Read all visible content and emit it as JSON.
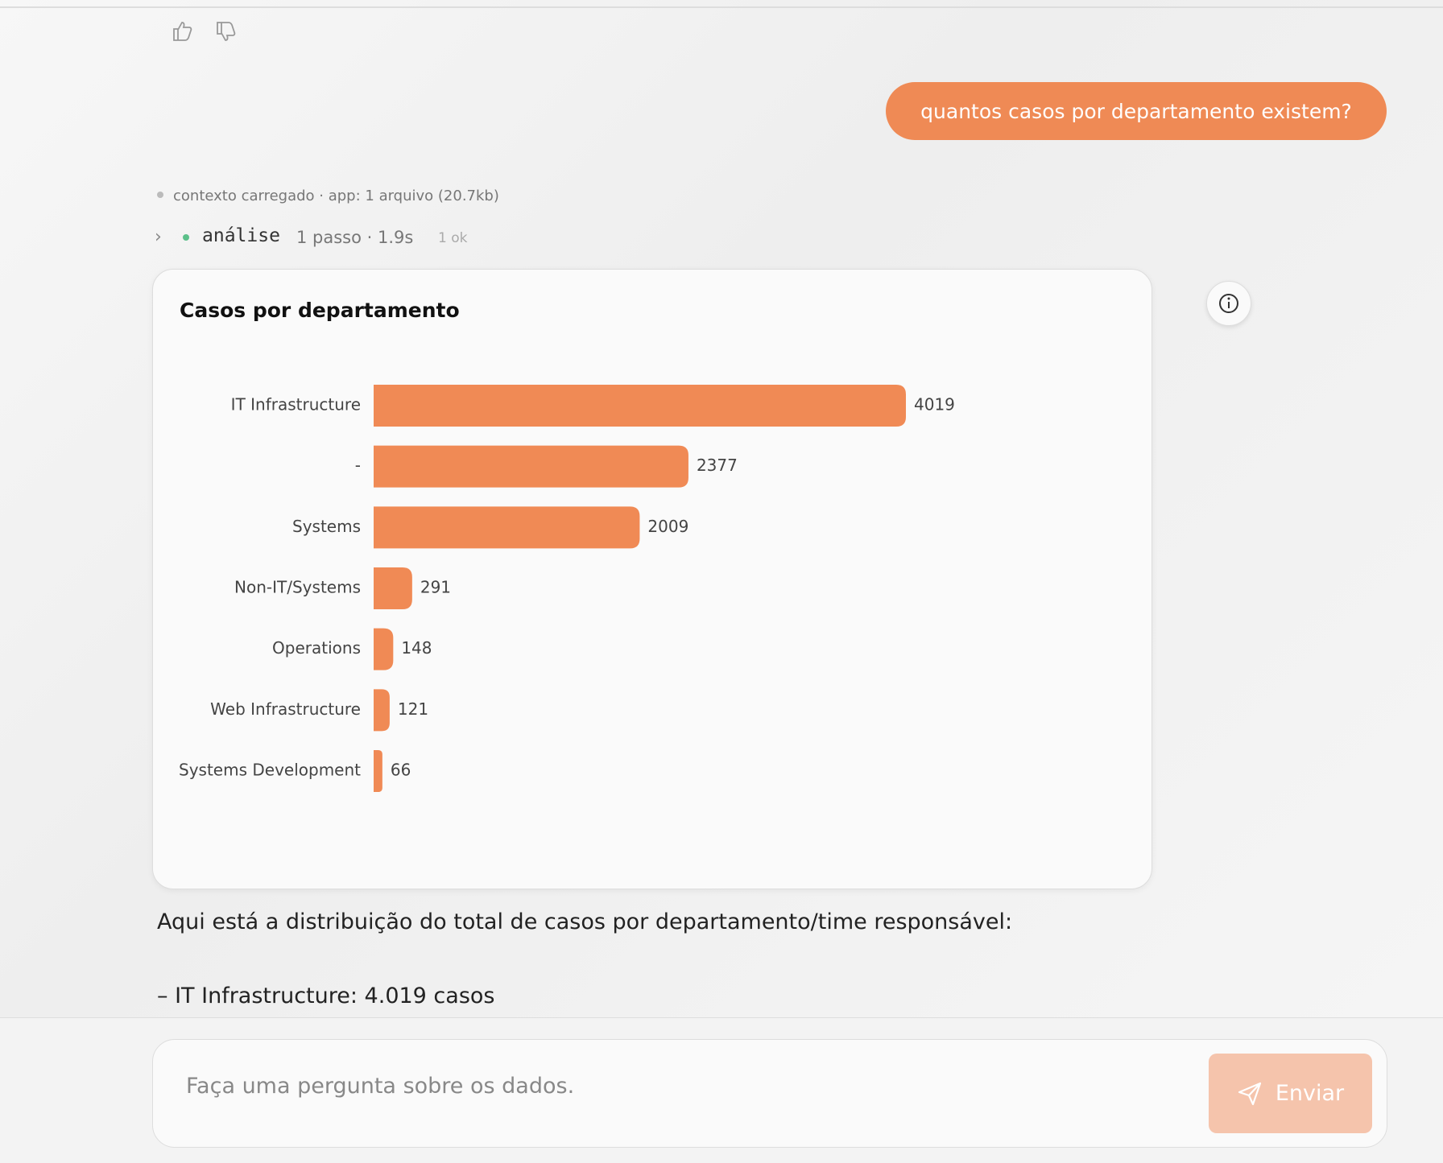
{
  "user_message": "quantos casos por departamento existem?",
  "context_line": "contexto carregado · app: 1 arquivo (20.7kb)",
  "analysis": {
    "label": "análise",
    "steps": "1 passo · 1.9s",
    "status": "1 ok"
  },
  "chart_data": {
    "type": "bar",
    "orientation": "horizontal",
    "title": "Casos por departamento",
    "categories": [
      "IT Infrastructure",
      "-",
      "Systems",
      "Non-IT/Systems",
      "Operations",
      "Web Infrastructure",
      "Systems Development"
    ],
    "values": [
      4019,
      2377,
      2009,
      291,
      148,
      121,
      66
    ],
    "color": "#f08a55"
  },
  "answer": {
    "intro": "Aqui está a distribuição do total de casos por departamento/time responsável:",
    "items": [
      "– IT Infrastructure: 4.019 casos"
    ]
  },
  "input": {
    "placeholder": "Faça uma pergunta sobre os dados.",
    "button": "Enviar"
  }
}
